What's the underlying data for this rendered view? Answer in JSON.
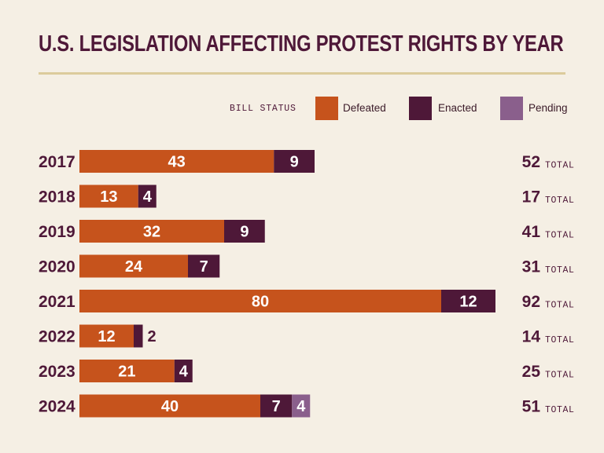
{
  "chart_data": {
    "type": "bar",
    "orientation": "horizontal",
    "stacked": true,
    "title": "U.S. LEGISLATION AFFECTING PROTEST RIGHTS BY YEAR",
    "legend_title": "BILL STATUS",
    "legend_position": "top-right",
    "total_label": "TOTAL",
    "categories": [
      "2017",
      "2018",
      "2019",
      "2020",
      "2021",
      "2022",
      "2023",
      "2024"
    ],
    "series": [
      {
        "name": "Defeated",
        "color": "#c6531c",
        "values": [
          43,
          13,
          32,
          24,
          80,
          12,
          21,
          40
        ]
      },
      {
        "name": "Enacted",
        "color": "#4e1838",
        "values": [
          9,
          4,
          9,
          7,
          12,
          2,
          4,
          7
        ]
      },
      {
        "name": "Pending",
        "color": "#8a5f8c",
        "values": [
          0,
          0,
          0,
          0,
          0,
          0,
          0,
          4
        ]
      }
    ],
    "totals": [
      52,
      17,
      41,
      31,
      92,
      14,
      25,
      51
    ],
    "xlim": [
      0,
      92
    ]
  }
}
